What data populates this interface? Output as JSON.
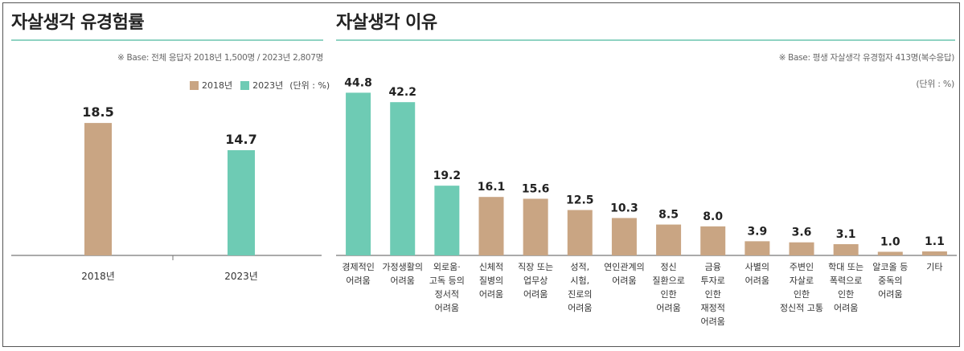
{
  "left_panel": {
    "title": "자살생각 유경험률",
    "base_note": "※ Base: 전체 응답자 2018년 1,500명 / 2023년 2,807명",
    "legend": {
      "items": [
        "2018년",
        "2023년"
      ],
      "unit": "(단위 : %)"
    }
  },
  "right_panel": {
    "title": "자살생각 이유",
    "base_note": "※ Base: 평생 자살생각 유경험자 413명(복수응답)",
    "unit": "(단위 : %)"
  },
  "colors": {
    "tan": "#c9a583",
    "teal": "#6ecbb4",
    "rule": "#8fd3c3"
  },
  "chart_data": [
    {
      "type": "bar",
      "title": "자살생각 유경험률",
      "categories": [
        "2018년",
        "2023년"
      ],
      "values": [
        18.5,
        14.7
      ],
      "value_labels": [
        "18.5",
        "14.7"
      ],
      "bar_colors": [
        "#c9a583",
        "#6ecbb4"
      ],
      "legend": [
        "2018년",
        "2023년"
      ],
      "legend_position": "top-right",
      "ylim": [
        0,
        23
      ]
    },
    {
      "type": "bar",
      "title": "자살생각 이유",
      "categories": [
        [
          "경제적인",
          "어려움"
        ],
        [
          "가정생활의",
          "어려움"
        ],
        [
          "외로움·",
          "고독 등의",
          "정서적",
          "어려움"
        ],
        [
          "신체적",
          "질병의",
          "어려움"
        ],
        [
          "직장 또는",
          "업무상",
          "어려움"
        ],
        [
          "성적,",
          "시험,",
          "진로의",
          "어려움"
        ],
        [
          "연인관계의",
          "어려움"
        ],
        [
          "정신",
          "질환으로",
          "인한",
          "어려움"
        ],
        [
          "금융",
          "투자로",
          "인한",
          "재정적",
          "어려움"
        ],
        [
          "사별의",
          "어려움"
        ],
        [
          "주변인",
          "자살로",
          "인한",
          "정신적 고통"
        ],
        [
          "학대 또는",
          "폭력으로",
          "인한",
          "어려움"
        ],
        [
          "알코올 등",
          "중독의",
          "어려움"
        ],
        [
          "기타"
        ]
      ],
      "values": [
        44.8,
        42.2,
        19.2,
        16.1,
        15.6,
        12.5,
        10.3,
        8.5,
        8.0,
        3.9,
        3.6,
        3.1,
        1.0,
        1.1
      ],
      "value_labels": [
        "44.8",
        "42.2",
        "19.2",
        "16.1",
        "15.6",
        "12.5",
        "10.3",
        "8.5",
        "8.0",
        "3.9",
        "3.6",
        "3.1",
        "1.0",
        "1.1"
      ],
      "highlight_count": 3,
      "ylim": [
        0,
        46
      ]
    }
  ]
}
